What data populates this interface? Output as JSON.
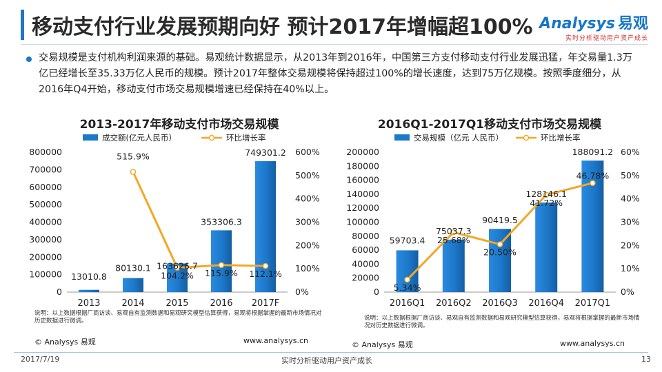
{
  "header": {
    "title": "移动支付行业发展预期向好 预计2017年增幅超100%",
    "logo_brand": "nalysys",
    "logo_prefix": "A",
    "logo_cn": "易观",
    "logo_slogan": "实时分析驱动用户资产成长"
  },
  "summary": "交易规模是支付机构利润来源的基础。易观统计数据显示，从2013年到2016年，中国第三方支付移动支付行业发展迅猛，年交易量1.3万亿已经增长至35.33万亿人民币的规模。预计2017年整体交易规模将保持超过100%的增长速度，达到75万亿规模。按照季度细分，从2016年Q4开始，移动支付市场交易规模增速已经保持在40%以上。",
  "chart_data": [
    {
      "type": "bar",
      "title": "2013-2017年移动支付市场交易规模",
      "categories": [
        "2013",
        "2014",
        "2015",
        "2016",
        "2017F"
      ],
      "series": [
        {
          "name": "成交额(亿元人民币）",
          "kind": "bar",
          "axis": "left",
          "values": [
            13010.8,
            80130.1,
            163626.7,
            353306.3,
            749301.2
          ],
          "labels": [
            "13010.8",
            "80130.1",
            "163626.7",
            "353306.3",
            "749301.2"
          ]
        },
        {
          "name": "环比增长率",
          "kind": "line",
          "axis": "right",
          "values": [
            null,
            515.9,
            104.2,
            115.9,
            112.1
          ],
          "labels": [
            "",
            "515.9%",
            "104.2%",
            "115.9%",
            "112.1%"
          ]
        }
      ],
      "y_left": {
        "min": 0,
        "max": 800000,
        "ticks": [
          "0",
          "100000",
          "200000",
          "300000",
          "400000",
          "500000",
          "600000",
          "700000",
          "800000"
        ]
      },
      "y_right": {
        "min": 0,
        "max": 600,
        "ticks": [
          "0%",
          "100%",
          "200%",
          "300%",
          "400%",
          "500%",
          "600%"
        ]
      },
      "note": "说明：以上数据根据厂商访谈、易观自有监测数据和易观研究模型估算获得，易观将根据掌握的最新市场情况对历史数据进行微调。",
      "source": "© Analysys 易观",
      "url": "www.analysys.cn"
    },
    {
      "type": "bar",
      "title": "2016Q1-2017Q1移动支付市场交易规模",
      "categories": [
        "2016Q1",
        "2016Q2",
        "2016Q3",
        "2016Q4",
        "2017Q1"
      ],
      "series": [
        {
          "name": "交易规模（亿元 人民币）",
          "kind": "bar",
          "axis": "left",
          "values": [
            59703.4,
            75037.3,
            90419.5,
            128146.1,
            188091.2
          ],
          "labels": [
            "59703.4",
            "75037.3",
            "90419.5",
            "128146.1",
            "188091.2"
          ]
        },
        {
          "name": "环比增长率",
          "kind": "line",
          "axis": "right",
          "values": [
            5.34,
            25.68,
            20.5,
            41.72,
            46.78
          ],
          "labels": [
            "5.34%",
            "25.68%",
            "20.50%",
            "41.72%",
            "46.78%"
          ]
        }
      ],
      "y_left": {
        "min": 0,
        "max": 200000,
        "ticks": [
          "0",
          "20000",
          "40000",
          "60000",
          "80000",
          "100000",
          "120000",
          "140000",
          "160000",
          "180000",
          "200000"
        ]
      },
      "y_right": {
        "min": 0,
        "max": 60,
        "ticks": [
          "0%",
          "10%",
          "20%",
          "30%",
          "40%",
          "50%",
          "60%"
        ]
      },
      "note": "说明：以上数据根据厂商访谈、易观自有监测数据和易观研究模型估算获得，易观将根据掌握的最新市场情况对历史数据进行微调。",
      "source": "© Analysys 易观",
      "url": "www.analysys.cn"
    }
  ],
  "footer": {
    "date": "2017/7/19",
    "slogan": "实时分析驱动用户资产成长",
    "page": "13"
  },
  "colors": {
    "bar": "#1c78c8",
    "line": "#f5a623",
    "accent": "#1f77c9"
  }
}
